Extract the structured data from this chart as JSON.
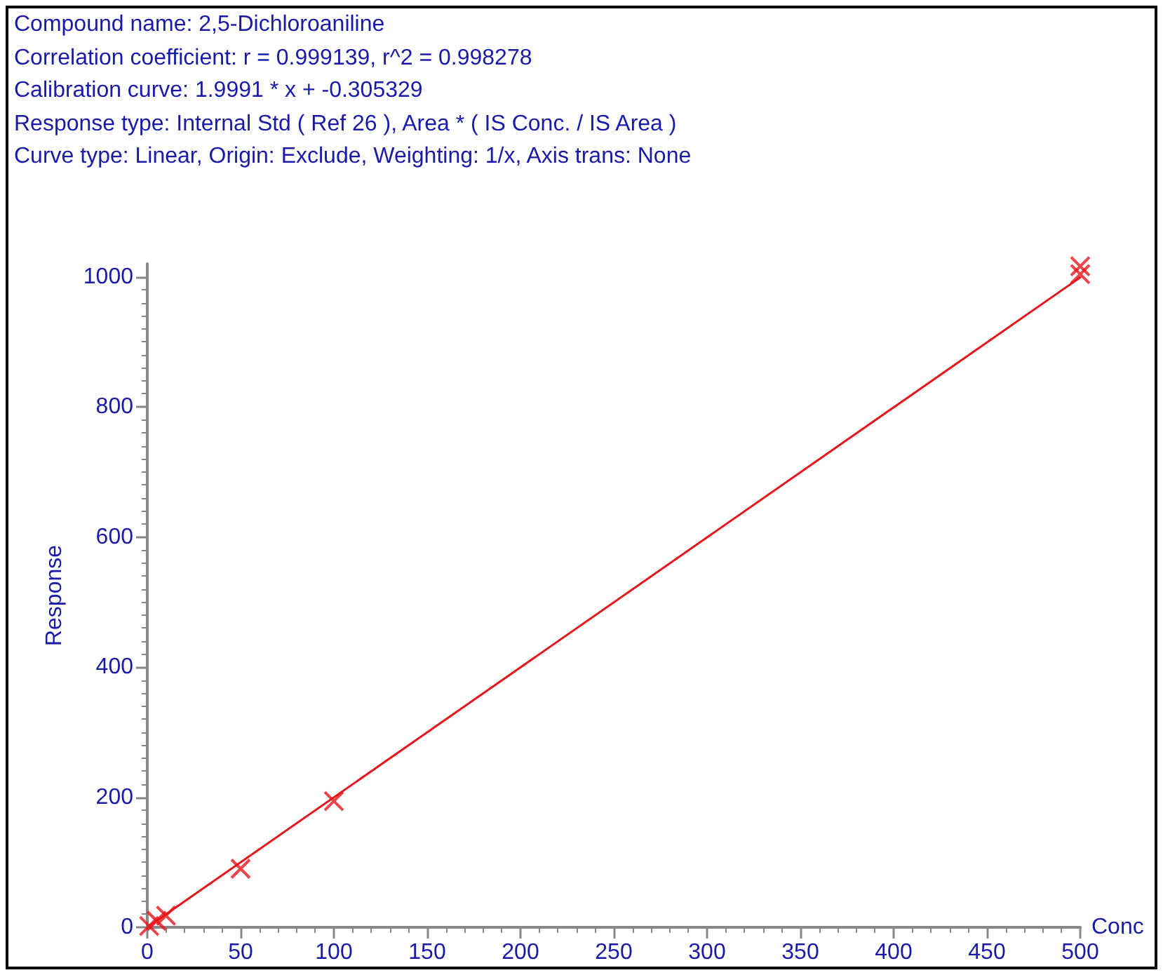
{
  "chart_data": {
    "type": "scatter",
    "title": "Compound name: 2,5-Dichloroaniline",
    "annotations": [
      "Correlation coefficient: r = 0.999139, r^2 = 0.998278",
      "Calibration curve: 1.9991 * x + -0.305329",
      "Response type: Internal Std ( Ref 26 ), Area * ( IS Conc. / IS Area )",
      "Curve type: Linear, Origin: Exclude, Weighting: 1/x, Axis trans: None"
    ],
    "xlabel": "Conc",
    "ylabel": "Response",
    "xlim": [
      0,
      500
    ],
    "ylim": [
      0,
      1020
    ],
    "xticks": [
      0,
      50,
      100,
      150,
      200,
      250,
      300,
      350,
      400,
      450,
      500
    ],
    "yticks": [
      0,
      200,
      400,
      600,
      800,
      1000
    ],
    "marker": "cross",
    "grid": false,
    "series": [
      {
        "color": "#e8141c",
        "x": [
          1,
          5,
          10,
          50,
          100,
          500,
          500
        ],
        "values": [
          2,
          10,
          18,
          90,
          194,
          1004,
          1016
        ]
      },
      {
        "type": "line",
        "color": "#e8141c",
        "x": [
          1,
          500
        ],
        "values": [
          2,
          999
        ],
        "marker": "none",
        "line_style": "solid"
      }
    ]
  }
}
